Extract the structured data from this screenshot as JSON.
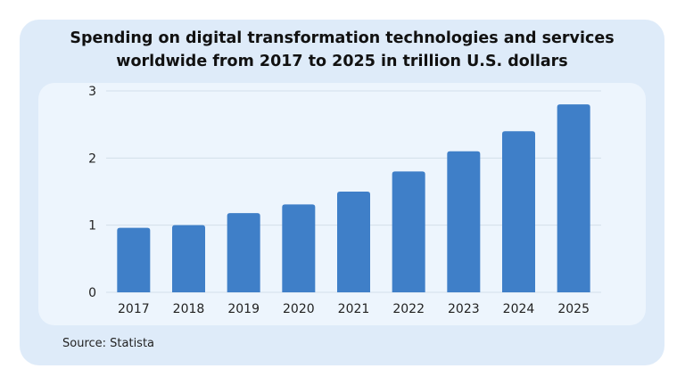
{
  "chart_data": {
    "type": "bar",
    "title": "Spending on digital transformation technologies and services worldwide from 2017 to 2025 in trillion U.S. dollars",
    "title_lines": [
      "Spending on digital transformation technologies and services",
      "worldwide from 2017 to 2025 in trillion U.S. dollars"
    ],
    "categories": [
      "2017",
      "2018",
      "2019",
      "2020",
      "2021",
      "2022",
      "2023",
      "2024",
      "2025"
    ],
    "values": [
      0.96,
      1.0,
      1.18,
      1.31,
      1.5,
      1.8,
      2.1,
      2.4,
      2.8
    ],
    "xlabel": "",
    "ylabel": "",
    "ylim": [
      0,
      3
    ],
    "yticks": [
      0,
      1,
      2,
      3
    ],
    "grid": true,
    "bar_color": "#3f7fc8"
  },
  "source": "Source: Statista"
}
